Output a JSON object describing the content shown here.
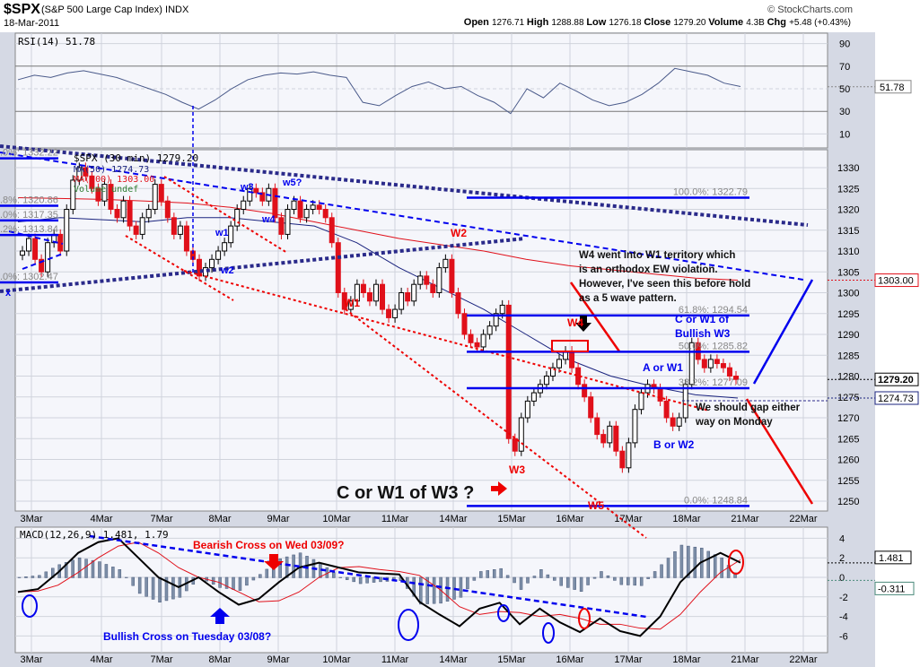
{
  "header": {
    "symbol": "$SPX",
    "name": "(S&P 500 Large Cap Index)",
    "exchange": "INDX",
    "date": "18-Mar-2011",
    "brand": "© StockCharts.com",
    "quote": [
      [
        "Open",
        "1276.71"
      ],
      [
        "High",
        "1288.88"
      ],
      [
        "Low",
        "1276.18"
      ],
      [
        "Close",
        "1279.20"
      ],
      [
        "Volume",
        "4.3B"
      ],
      [
        "Chg",
        "+5.48 (+0.43%)"
      ]
    ]
  },
  "colors": {
    "up": "#000000",
    "down": "#e0101a",
    "ma50": "#1a237e",
    "ma200": "#e0101a",
    "annot_blue": "#0000ee",
    "annot_red": "#ee0000",
    "panel_bg": "#f5f6fb",
    "frame": "#d5d9e4"
  },
  "chart_data": [
    {
      "type": "line",
      "title": "RSI(14) 51.78",
      "yticks": [
        90,
        70,
        50,
        30,
        10
      ],
      "ylim": [
        0,
        100
      ],
      "last_label": "51.78",
      "values": [
        58,
        62,
        60,
        64,
        66,
        63,
        60,
        55,
        50,
        45,
        38,
        32,
        40,
        50,
        58,
        62,
        64,
        63,
        65,
        62,
        60,
        38,
        35,
        44,
        52,
        56,
        50,
        52,
        44,
        38,
        28,
        50,
        42,
        55,
        48,
        40,
        35,
        38,
        45,
        55,
        68,
        65,
        62,
        55,
        52
      ]
    },
    {
      "type": "candlestick",
      "legend": "$SPX (30 min) 1279.20",
      "ma50_label": "MA(50) 1274.73",
      "ma200_label": "MA(200) 1303.00",
      "volume_label": "Volume undef",
      "ylim": [
        1245,
        1335
      ],
      "yticks": [
        1250,
        1255,
        1260,
        1265,
        1270,
        1275,
        1280,
        1285,
        1290,
        1295,
        1300,
        1305,
        1310,
        1315,
        1320,
        1325,
        1330
      ],
      "dates": [
        "3Mar",
        "4Mar",
        "7Mar",
        "8Mar",
        "9Mar",
        "10Mar",
        "11Mar",
        "14Mar",
        "15Mar",
        "16Mar",
        "17Mar",
        "18Mar",
        "21Mar",
        "22Mar"
      ],
      "closes": [
        1310,
        1313,
        1308,
        1305,
        1312,
        1314,
        1310,
        1320,
        1327,
        1330,
        1328,
        1325,
        1322,
        1326,
        1320,
        1318,
        1322,
        1316,
        1314,
        1318,
        1320,
        1326,
        1322,
        1318,
        1314,
        1316,
        1310,
        1308,
        1304,
        1306,
        1308,
        1310,
        1312,
        1316,
        1320,
        1322,
        1325,
        1324,
        1322,
        1325,
        1318,
        1314,
        1320,
        1322,
        1318,
        1320,
        1321,
        1320,
        1318,
        1312,
        1300,
        1296,
        1298,
        1302,
        1300,
        1298,
        1302,
        1296,
        1294,
        1296,
        1300,
        1298,
        1302,
        1304,
        1302,
        1300,
        1306,
        1308,
        1300,
        1295,
        1290,
        1288,
        1287,
        1290,
        1292,
        1295,
        1297,
        1265,
        1262,
        1270,
        1274,
        1276,
        1278,
        1280,
        1282,
        1284,
        1286,
        1282,
        1278,
        1275,
        1270,
        1266,
        1264,
        1268,
        1262,
        1258,
        1264,
        1272,
        1276,
        1278,
        1277,
        1274,
        1270,
        1268,
        1270,
        1278,
        1288,
        1284,
        1282,
        1284,
        1283,
        1282,
        1280,
        1279.2
      ],
      "ma50": [
        1317,
        1318,
        1317.5,
        1317,
        1318,
        1318,
        1317,
        1316,
        1312,
        1306,
        1301,
        1296,
        1290,
        1284,
        1280,
        1277.5,
        1275.5,
        1274.73
      ],
      "ma200": [
        1322.8,
        1322.6,
        1322.4,
        1322,
        1321.5,
        1320.5,
        1319,
        1317,
        1315,
        1313,
        1311.5,
        1310,
        1308,
        1306.5,
        1305.5,
        1304.5,
        1303.5,
        1303.0
      ],
      "price_tags": [
        {
          "value": "1303.00",
          "color": "#e0101a"
        },
        {
          "value": "1279.20",
          "color": "#000000"
        },
        {
          "value": "1274.73",
          "color": "#1a237e"
        }
      ],
      "fib_right": [
        "100.0%: 1322.79",
        "61.8%: 1294.54",
        "50.0%: 1285.82",
        "38.2%: 1277.09",
        "0.0%: 1248.84"
      ],
      "fib_left": [
        ".0%: 1332.22",
        ".8%: 1320.86",
        ".0%: 1317.35",
        ".2%: 1313.84",
        ".0%: 1302.47"
      ]
    },
    {
      "type": "line",
      "title": "MACD(12,26,9) 1.481, 1.79",
      "yticks": [
        4,
        2,
        0,
        -2,
        -4,
        -6
      ],
      "ylim": [
        -8,
        5
      ],
      "macd_tag": "1.481",
      "hist_tag": "-0.311",
      "macd": [
        -1.5,
        -1.2,
        0.5,
        2.5,
        3.6,
        4,
        2,
        0,
        -1,
        0,
        -1.5,
        -2.8,
        -2.2,
        -0.5,
        1,
        1.5,
        1,
        0.5,
        0.4,
        0.3,
        -2.5,
        -3.8,
        -5,
        -3.2,
        -2.6,
        -4.8,
        -3.2,
        -4.6,
        -5.6,
        -4.2,
        -5.5,
        -6,
        -4,
        -0.5,
        1.5,
        2.5,
        1.5
      ],
      "signal": [
        -1.5,
        -1.4,
        -0.8,
        0.5,
        2,
        3.2,
        3.6,
        2.5,
        1,
        0,
        -0.5,
        -1.5,
        -2.5,
        -2.4,
        -1.5,
        0,
        1,
        1.1,
        0.8,
        0.6,
        0.2,
        -1.2,
        -3,
        -3.8,
        -3.5,
        -3.6,
        -4,
        -3.8,
        -4.2,
        -4.8,
        -4.8,
        -5.2,
        -5.3,
        -3.8,
        -1.5,
        0.5,
        1.8
      ]
    }
  ],
  "annotations": {
    "waves_blue": [
      "w1",
      "w2",
      "w3",
      "w4",
      "w5?",
      "x"
    ],
    "waves_red": [
      "W1",
      "W2",
      "W3",
      "W4",
      "W5"
    ],
    "a_or_w1": "A or W1",
    "b_or_w2": "B or W2",
    "c_or_w1_1": "C or W1 of",
    "c_or_w1_2": "Bullish W3",
    "note1": [
      "W4 went into W1 territory which",
      "is an orthodox EW violation.",
      "However, I've seen this before hold",
      "as a 5 wave pattern."
    ],
    "note2": [
      "We should gap either",
      "way on Monday"
    ],
    "big": "C or W1 of W3 ?",
    "bearish": "Bearish Cross on Wed 03/09?",
    "bullish": "Bullish Cross on Tuesday 03/08?"
  }
}
